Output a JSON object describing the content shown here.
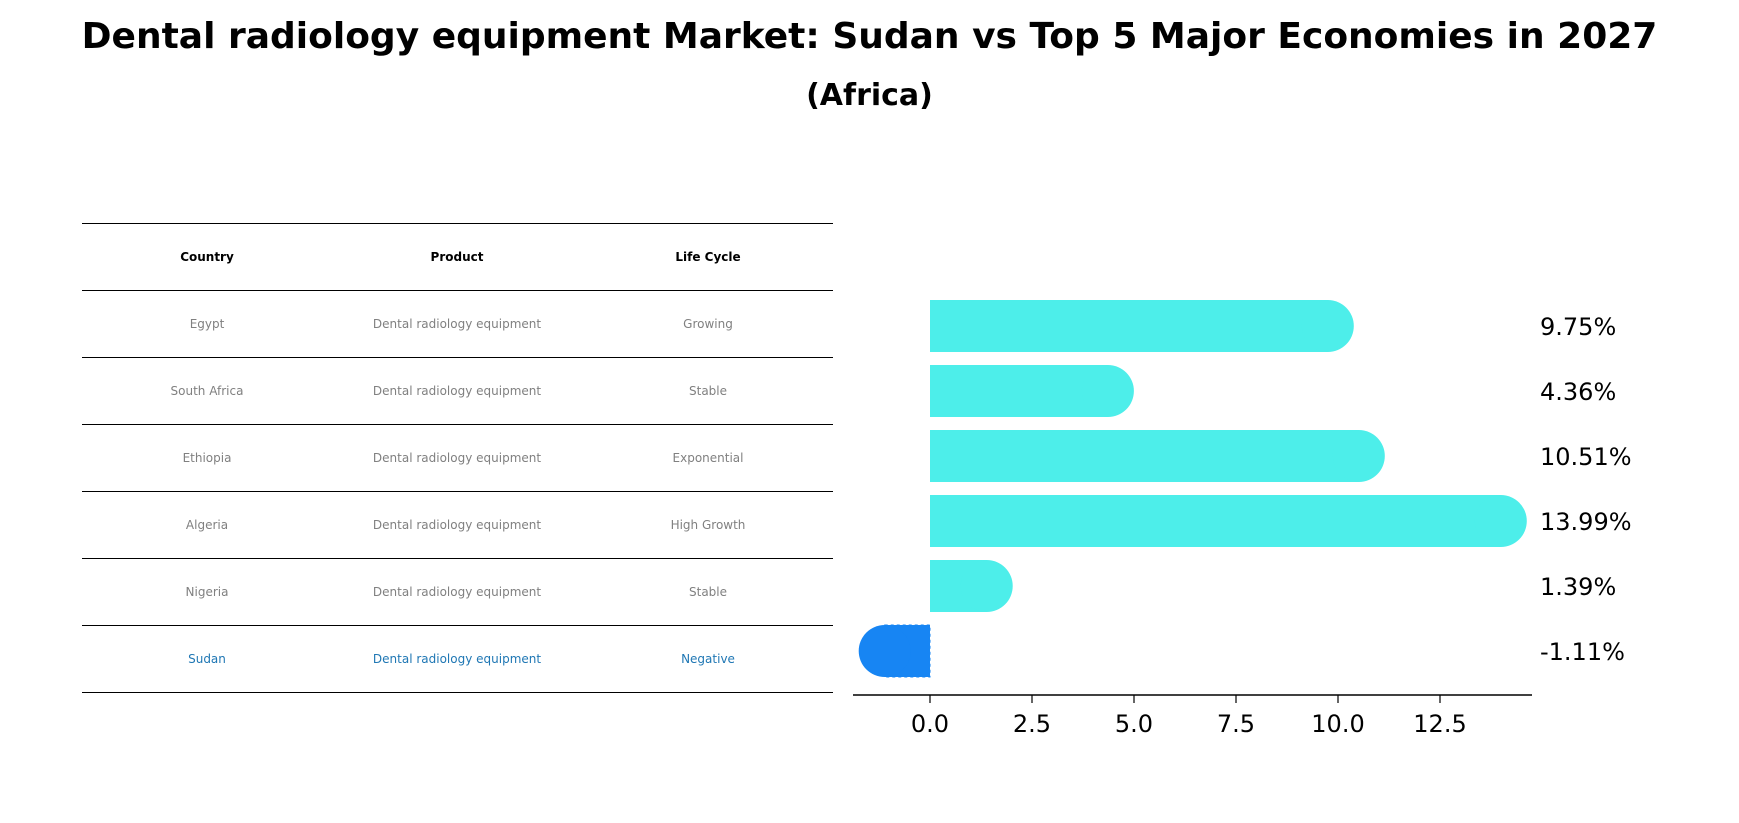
{
  "title": "Dental radiology equipment Market: Sudan vs Top 5 Major Economies in 2027",
  "subtitle": "(Africa)",
  "table": {
    "headers": [
      "Country",
      "Product",
      "Life Cycle"
    ],
    "rows": [
      {
        "country": "Egypt",
        "product": "Dental radiology equipment",
        "life_cycle": "Growing"
      },
      {
        "country": "South Africa",
        "product": "Dental radiology equipment",
        "life_cycle": "Stable"
      },
      {
        "country": "Ethiopia",
        "product": "Dental radiology equipment",
        "life_cycle": "Exponential"
      },
      {
        "country": "Algeria",
        "product": "Dental radiology equipment",
        "life_cycle": "High Growth"
      },
      {
        "country": "Nigeria",
        "product": "Dental radiology equipment",
        "life_cycle": "Stable"
      },
      {
        "country": "Sudan",
        "product": "Dental radiology equipment",
        "life_cycle": "Negative"
      }
    ],
    "highlight_color": "#1f77b4",
    "text_color": "#808080"
  },
  "chart_data": {
    "type": "bar",
    "orientation": "horizontal",
    "categories": [
      "Egypt",
      "South Africa",
      "Ethiopia",
      "Algeria",
      "Nigeria",
      "Sudan"
    ],
    "values": [
      9.75,
      4.36,
      10.51,
      13.99,
      1.39,
      -1.11
    ],
    "value_labels": [
      "9.75%",
      "4.36%",
      "10.51%",
      "13.99%",
      "1.39%",
      "-1.11%"
    ],
    "xticks": [
      "0.0",
      "2.5",
      "5.0",
      "7.5",
      "10.0",
      "12.5"
    ],
    "xlim": [
      -1.9,
      14.8
    ],
    "colors": {
      "default": "#4deeea",
      "highlight": "#1785f3"
    },
    "highlight_index": 5,
    "grid": false
  }
}
